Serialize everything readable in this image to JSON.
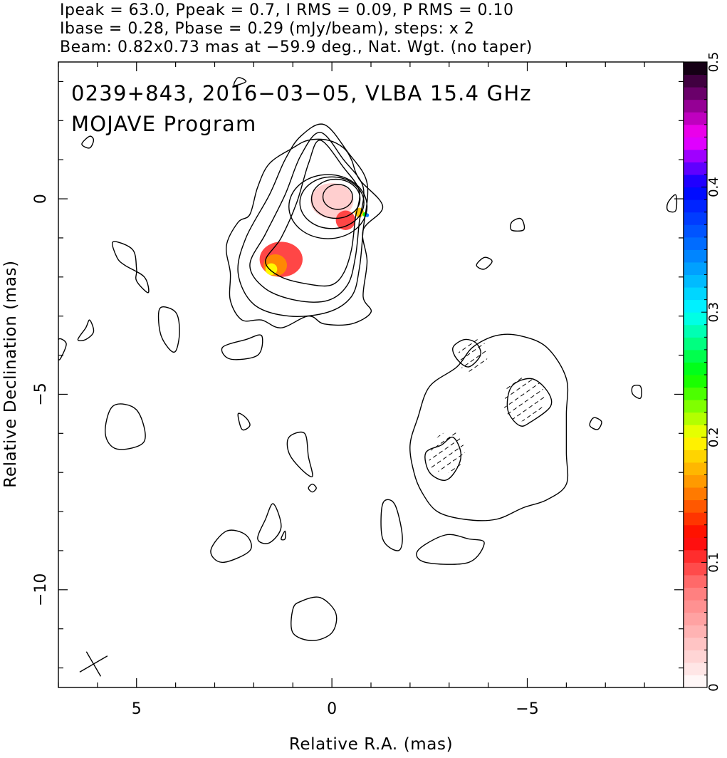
{
  "header": {
    "line1": "Ipeak = 63.0, Ppeak = 0.7, I RMS = 0.09, P RMS = 0.10",
    "line2": "Ibase = 0.28, Pbase = 0.29 (mJy/beam), steps: x 2",
    "line3": "Beam: 0.82x0.73 mas at −59.9 deg., Nat. Wgt. (no taper)"
  },
  "map_labels": {
    "source_line": "0239+843, 2016−03−05, VLBA 15.4 GHz",
    "program_line": "MOJAVE Program"
  },
  "chart_data": {
    "type": "contour",
    "xlabel": "Relative R.A. (mas)",
    "ylabel": "Relative Declination (mas)",
    "xlim": [
      7.0,
      -9.0
    ],
    "ylim": [
      -12.5,
      3.5
    ],
    "x_ticks": [
      {
        "value": 5,
        "label": "5"
      },
      {
        "value": 0,
        "label": "0"
      },
      {
        "value": -5,
        "label": "−5"
      }
    ],
    "y_ticks": [
      {
        "value": 0,
        "label": "0"
      },
      {
        "value": -5,
        "label": "−5"
      },
      {
        "value": -10,
        "label": "−10"
      }
    ],
    "contour_base_mJy_per_beam": 0.28,
    "contour_step_factor": 2,
    "peak_mJy_per_beam": 63.0,
    "core_contours": [
      {
        "cx": -0.15,
        "cy": 0.05,
        "rx": 0.38,
        "ry": 0.32
      },
      {
        "cx": -0.1,
        "cy": 0.0,
        "rx": 0.62,
        "ry": 0.5
      },
      {
        "cx": 0.0,
        "cy": -0.1,
        "rx": 0.82,
        "ry": 0.66
      },
      {
        "cx": 0.1,
        "cy": -0.2,
        "rx": 1.0,
        "ry": 0.82
      }
    ],
    "extended_contours": [
      [
        [
          0.3,
          1.5
        ],
        [
          -0.3,
          0.8
        ],
        [
          -0.7,
          0.2
        ],
        [
          -0.6,
          -0.5
        ],
        [
          -0.5,
          -1.3
        ],
        [
          -0.3,
          -1.9
        ],
        [
          0.0,
          -2.2
        ],
        [
          0.5,
          -2.2
        ],
        [
          1.3,
          -2.0
        ],
        [
          1.7,
          -1.6
        ],
        [
          1.3,
          -1.0
        ],
        [
          0.9,
          -0.1
        ],
        [
          0.6,
          0.9
        ]
      ],
      [
        [
          0.3,
          1.7
        ],
        [
          -0.3,
          1.0
        ],
        [
          -0.8,
          0.3
        ],
        [
          -0.7,
          -0.6
        ],
        [
          -0.6,
          -1.5
        ],
        [
          -0.4,
          -2.2
        ],
        [
          0.1,
          -2.6
        ],
        [
          0.9,
          -2.6
        ],
        [
          1.7,
          -2.3
        ],
        [
          2.1,
          -1.7
        ],
        [
          1.7,
          -0.9
        ],
        [
          1.2,
          0.1
        ],
        [
          0.8,
          1.1
        ]
      ],
      [
        [
          0.2,
          1.9
        ],
        [
          -0.4,
          1.2
        ],
        [
          -0.9,
          0.4
        ],
        [
          -0.8,
          -0.8
        ],
        [
          -0.7,
          -1.8
        ],
        [
          -0.5,
          -2.5
        ],
        [
          0.1,
          -2.9
        ],
        [
          1.1,
          -3.0
        ],
        [
          2.0,
          -2.7
        ],
        [
          2.4,
          -1.9
        ],
        [
          2.2,
          -1.0
        ],
        [
          1.6,
          0.1
        ],
        [
          1.2,
          1.0
        ],
        [
          0.8,
          1.6
        ]
      ],
      [
        [
          0.1,
          1.5
        ],
        [
          -0.3,
          1.3
        ],
        [
          -0.5,
          1.0
        ],
        [
          -0.7,
          0.5
        ],
        [
          -1.3,
          -0.2
        ],
        [
          -0.8,
          -0.8
        ],
        [
          -0.9,
          -1.6
        ],
        [
          -0.8,
          -2.5
        ],
        [
          -1.0,
          -2.9
        ],
        [
          -0.5,
          -3.2
        ],
        [
          0.2,
          -3.2
        ],
        [
          0.6,
          -3.0
        ],
        [
          1.3,
          -3.3
        ],
        [
          1.8,
          -3.1
        ],
        [
          2.3,
          -3.1
        ],
        [
          2.6,
          -2.6
        ],
        [
          2.6,
          -1.9
        ],
        [
          2.7,
          -1.2
        ],
        [
          2.4,
          -0.6
        ],
        [
          2.1,
          -0.4
        ],
        [
          1.9,
          0.3
        ],
        [
          1.6,
          0.9
        ],
        [
          1.0,
          1.3
        ],
        [
          0.6,
          1.5
        ]
      ],
      [
        [
          -4.8,
          -3.5
        ],
        [
          -5.5,
          -3.8
        ],
        [
          -6.0,
          -4.6
        ],
        [
          -6.0,
          -5.5
        ],
        [
          -6.0,
          -6.5
        ],
        [
          -6.0,
          -7.3
        ],
        [
          -5.5,
          -7.7
        ],
        [
          -4.9,
          -7.9
        ],
        [
          -4.2,
          -8.2
        ],
        [
          -3.4,
          -8.2
        ],
        [
          -2.7,
          -8.0
        ],
        [
          -2.3,
          -7.5
        ],
        [
          -2.1,
          -7.0
        ],
        [
          -2.0,
          -6.3
        ],
        [
          -2.2,
          -5.6
        ],
        [
          -2.5,
          -4.8
        ],
        [
          -3.2,
          -4.3
        ],
        [
          -3.6,
          -3.8
        ],
        [
          -4.2,
          -3.5
        ]
      ],
      [
        [
          -4.6,
          -4.8
        ],
        [
          -5.1,
          -4.6
        ],
        [
          -5.5,
          -4.9
        ],
        [
          -5.6,
          -5.3
        ],
        [
          -5.1,
          -5.7
        ],
        [
          -4.8,
          -5.8
        ],
        [
          -4.5,
          -5.4
        ]
      ],
      [
        [
          -2.8,
          -6.3
        ],
        [
          -3.1,
          -6.1
        ],
        [
          -3.3,
          -6.5
        ],
        [
          -3.2,
          -6.9
        ],
        [
          -2.9,
          -7.2
        ],
        [
          -2.5,
          -7.0
        ],
        [
          -2.4,
          -6.5
        ]
      ],
      [
        [
          -3.4,
          -3.6
        ],
        [
          -3.7,
          -3.7
        ],
        [
          -3.8,
          -4.0
        ],
        [
          -3.5,
          -4.3
        ],
        [
          -3.2,
          -4.1
        ],
        [
          -3.1,
          -3.8
        ]
      ],
      [
        [
          5.6,
          -1.1
        ],
        [
          5.1,
          -1.3
        ],
        [
          5.0,
          -1.8
        ],
        [
          5.0,
          -2.1
        ],
        [
          4.7,
          -2.4
        ],
        [
          4.8,
          -2.0
        ],
        [
          5.3,
          -1.7
        ],
        [
          5.5,
          -1.5
        ]
      ],
      [
        [
          4.4,
          -2.8
        ],
        [
          4.0,
          -2.9
        ],
        [
          3.9,
          -3.4
        ],
        [
          4.0,
          -3.9
        ],
        [
          4.2,
          -3.8
        ],
        [
          4.4,
          -3.4
        ]
      ],
      [
        [
          2.2,
          -3.6
        ],
        [
          1.8,
          -3.5
        ],
        [
          1.9,
          -4.0
        ],
        [
          2.6,
          -4.1
        ],
        [
          2.8,
          -3.8
        ]
      ],
      [
        [
          5.0,
          -5.4
        ],
        [
          5.6,
          -5.3
        ],
        [
          5.8,
          -6.0
        ],
        [
          5.5,
          -6.4
        ],
        [
          4.8,
          -6.2
        ]
      ],
      [
        [
          1.1,
          -6.1
        ],
        [
          0.7,
          -6.0
        ],
        [
          0.6,
          -6.6
        ],
        [
          0.5,
          -7.1
        ],
        [
          0.8,
          -6.9
        ],
        [
          1.1,
          -6.5
        ]
      ],
      [
        [
          -1.3,
          -7.8
        ],
        [
          -1.6,
          -7.8
        ],
        [
          -1.8,
          -8.6
        ],
        [
          -1.7,
          -9.0
        ],
        [
          -1.3,
          -8.7
        ]
      ],
      [
        [
          2.7,
          -8.5
        ],
        [
          2.2,
          -8.6
        ],
        [
          2.1,
          -9.0
        ],
        [
          2.8,
          -9.3
        ],
        [
          3.1,
          -9.0
        ]
      ],
      [
        [
          1.5,
          -7.8
        ],
        [
          1.7,
          -8.2
        ],
        [
          1.9,
          -8.7
        ],
        [
          1.6,
          -8.8
        ],
        [
          1.3,
          -8.4
        ]
      ],
      [
        [
          0.8,
          -10.3
        ],
        [
          1.0,
          -10.5
        ],
        [
          1.0,
          -11.1
        ],
        [
          0.5,
          -11.3
        ],
        [
          0.0,
          -11.1
        ],
        [
          -0.1,
          -10.6
        ],
        [
          0.3,
          -10.2
        ]
      ],
      [
        [
          -2.9,
          -8.6
        ],
        [
          -3.5,
          -8.7
        ],
        [
          -3.9,
          -8.8
        ],
        [
          -3.5,
          -9.3
        ],
        [
          -2.4,
          -9.3
        ],
        [
          -2.2,
          -9.0
        ]
      ],
      [
        [
          2.2,
          -5.6
        ],
        [
          2.4,
          -5.5
        ],
        [
          2.3,
          -5.9
        ],
        [
          2.1,
          -5.8
        ]
      ],
      [
        [
          -4.8,
          -0.5
        ],
        [
          -4.9,
          -0.6
        ],
        [
          -4.9,
          -0.8
        ],
        [
          -4.6,
          -0.8
        ],
        [
          -4.6,
          -0.6
        ]
      ],
      [
        [
          -3.9,
          -1.5
        ],
        [
          -4.1,
          -1.6
        ],
        [
          -3.9,
          -1.8
        ],
        [
          -3.7,
          -1.7
        ]
      ],
      [
        [
          -6.7,
          -5.6
        ],
        [
          -6.9,
          -5.7
        ],
        [
          -6.8,
          -5.9
        ],
        [
          -6.6,
          -5.8
        ]
      ],
      [
        [
          -7.7,
          -4.8
        ],
        [
          -7.9,
          -4.8
        ],
        [
          -7.9,
          -5.1
        ],
        [
          -7.7,
          -5.0
        ]
      ],
      [
        [
          6.2,
          -3.1
        ],
        [
          6.3,
          -3.3
        ],
        [
          6.5,
          -3.6
        ],
        [
          6.3,
          -3.6
        ],
        [
          6.1,
          -3.4
        ]
      ],
      [
        [
          7.0,
          -3.6
        ],
        [
          6.8,
          -3.7
        ],
        [
          6.9,
          -4.0
        ],
        [
          7.0,
          -4.1
        ]
      ],
      [
        [
          6.1,
          1.5
        ],
        [
          6.2,
          1.6
        ],
        [
          6.4,
          1.4
        ],
        [
          6.2,
          1.3
        ]
      ],
      [
        [
          0.5,
          -7.3
        ],
        [
          0.4,
          -7.4
        ],
        [
          0.5,
          -7.5
        ],
        [
          0.6,
          -7.4
        ]
      ],
      [
        [
          1.2,
          -8.5
        ],
        [
          1.2,
          -8.7
        ],
        [
          1.3,
          -8.7
        ]
      ],
      [
        [
          2.5,
          2.9
        ],
        [
          2.4,
          3.1
        ],
        [
          2.2,
          3.0
        ]
      ],
      [
        [
          -8.8,
          0.1
        ],
        [
          -8.6,
          -0.1
        ],
        [
          -8.6,
          -0.3
        ],
        [
          -8.8,
          -0.3
        ]
      ]
    ],
    "negative_contours": [
      [
        [
          -3.3,
          -3.7
        ],
        [
          -3.8,
          -3.6
        ],
        [
          -4.0,
          -4.0
        ],
        [
          -3.7,
          -4.4
        ],
        [
          -3.3,
          -4.3
        ]
      ],
      [
        [
          -4.6,
          -4.6
        ],
        [
          -5.3,
          -4.7
        ],
        [
          -5.4,
          -5.3
        ],
        [
          -4.8,
          -5.7
        ],
        [
          -4.4,
          -5.3
        ]
      ],
      [
        [
          -2.7,
          -6.1
        ],
        [
          -3.2,
          -6.0
        ],
        [
          -3.4,
          -6.6
        ],
        [
          -3.0,
          -7.0
        ],
        [
          -2.5,
          -6.8
        ]
      ]
    ],
    "fractional_pol_colorbar": {
      "min": 0,
      "max": 0.5,
      "ticks": [
        {
          "value": 0,
          "label": "0"
        },
        {
          "value": 0.1,
          "label": "0.1"
        },
        {
          "value": 0.2,
          "label": "0.2"
        },
        {
          "value": 0.3,
          "label": "0.3"
        },
        {
          "value": 0.4,
          "label": "0.4"
        },
        {
          "value": 0.5,
          "label": "0.5"
        }
      ]
    },
    "pol_blobs": [
      {
        "x": 0.0,
        "y": -0.05,
        "rx": 0.55,
        "ry": 0.45,
        "value": 0.03
      },
      {
        "x": -0.35,
        "y": -0.55,
        "rx": 0.25,
        "ry": 0.25,
        "value": 0.1
      },
      {
        "x": -0.7,
        "y": -0.35,
        "rx": 0.12,
        "ry": 0.12,
        "value": 0.18
      },
      {
        "x": -0.85,
        "y": -0.4,
        "rx": 0.06,
        "ry": 0.06,
        "value": 0.25
      },
      {
        "x": -0.9,
        "y": -0.42,
        "rx": 0.05,
        "ry": 0.05,
        "value": 0.35
      },
      {
        "x": 1.3,
        "y": -1.55,
        "rx": 0.55,
        "ry": 0.45,
        "value": 0.1
      },
      {
        "x": 1.45,
        "y": -1.7,
        "rx": 0.3,
        "ry": 0.28,
        "value": 0.16
      },
      {
        "x": 1.55,
        "y": -1.8,
        "rx": 0.15,
        "ry": 0.15,
        "value": 0.2
      }
    ],
    "beam": {
      "major_mas": 0.82,
      "minor_mas": 0.73,
      "pa_deg": -59.9
    }
  }
}
